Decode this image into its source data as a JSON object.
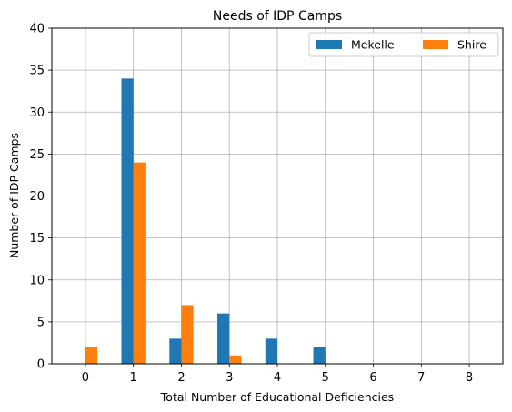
{
  "chart_data": {
    "type": "bar",
    "title": "Needs of IDP Camps",
    "xlabel": "Total Number of Educational Deficiencies",
    "ylabel": "Number of IDP Camps",
    "x": [
      0,
      1,
      2,
      3,
      4,
      5,
      6,
      7,
      8
    ],
    "xlim": [
      -0.7,
      8.7
    ],
    "ylim": [
      0,
      40
    ],
    "yticks": [
      0,
      5,
      10,
      15,
      20,
      25,
      30,
      35,
      40
    ],
    "grid": true,
    "legend_placement": "top-right",
    "series": [
      {
        "name": "Mekelle",
        "color": "#1f77b4",
        "values": [
          0,
          34,
          3,
          6,
          3,
          2,
          0,
          0,
          0
        ]
      },
      {
        "name": "Shire",
        "color": "#ff7f0e",
        "values": [
          2,
          24,
          7,
          1,
          0,
          0,
          0,
          0,
          0
        ]
      }
    ]
  }
}
